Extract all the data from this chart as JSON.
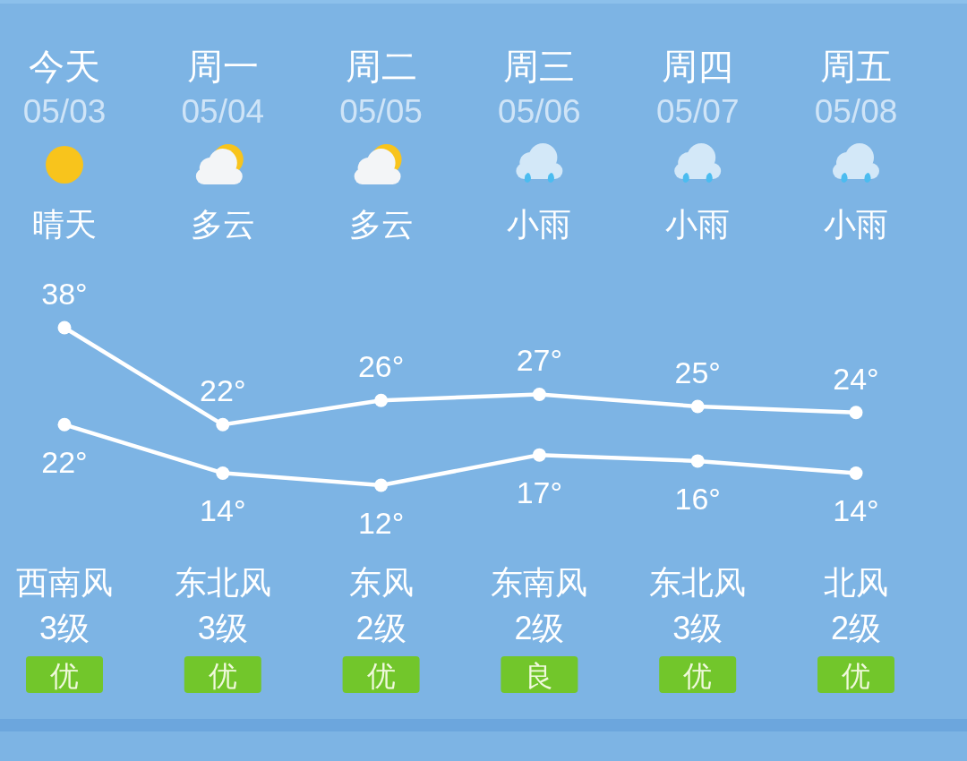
{
  "chart_data": {
    "type": "line",
    "categories": [
      "今天",
      "周一",
      "周二",
      "周三",
      "周四",
      "周五"
    ],
    "series": [
      {
        "color": "#ffffff",
        "values": [
          38,
          22,
          26,
          27,
          25,
          24
        ],
        "value_labels": [
          "38°",
          "22°",
          "26°",
          "27°",
          "25°",
          "24°"
        ]
      },
      {
        "color": "#ffffff",
        "values": [
          22,
          14,
          12,
          17,
          16,
          14
        ],
        "value_labels": [
          "22°",
          "14°",
          "12°",
          "17°",
          "16°",
          "14°"
        ]
      }
    ],
    "marker": "circle",
    "tick_labels": "x",
    "annotations": [
      "05/03",
      "晴天",
      "西南风",
      "3级",
      "优",
      "05/04",
      "多云",
      "东北风",
      "3级",
      "优",
      "05/05",
      "多云",
      "东风",
      "2级",
      "优",
      "05/06",
      "小雨",
      "东南风",
      "2级",
      "良",
      "05/07",
      "小雨",
      "东北风",
      "3级",
      "优",
      "05/08",
      "小雨",
      "北风",
      "2级",
      "优"
    ]
  }
}
